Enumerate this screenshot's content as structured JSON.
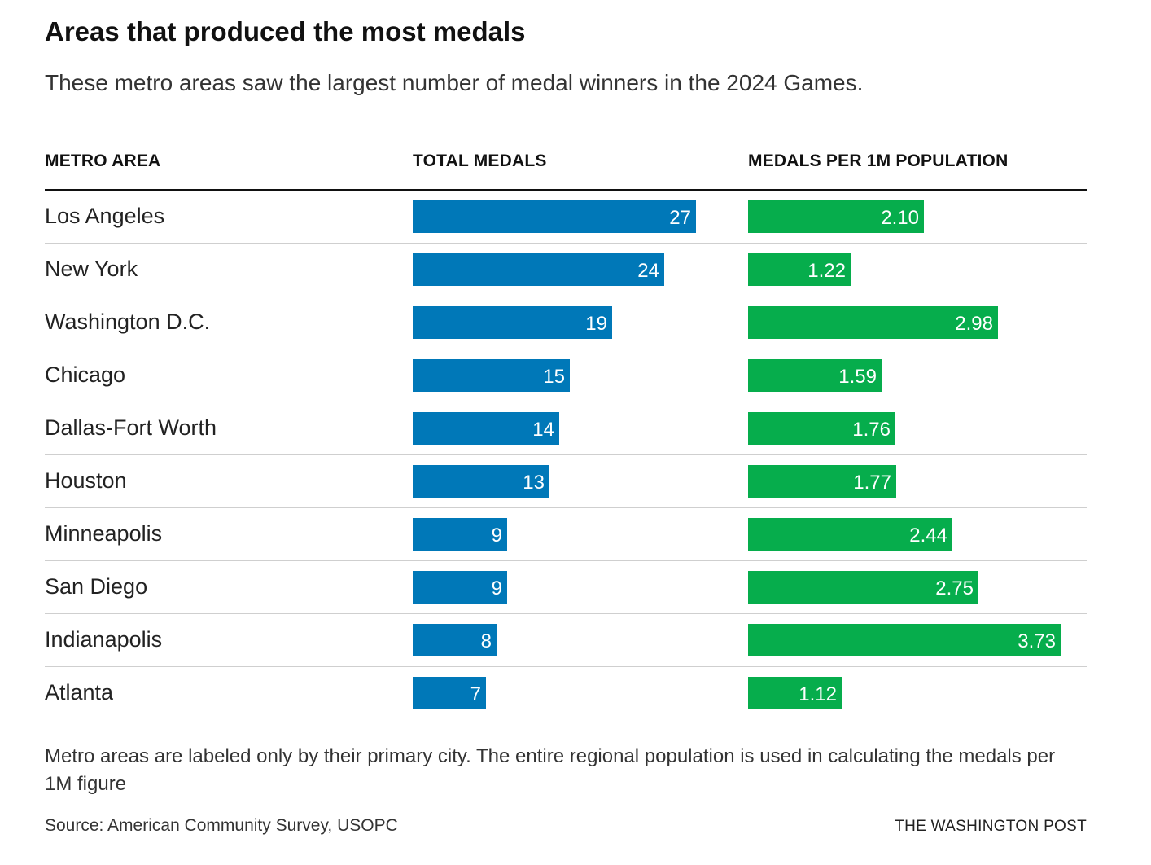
{
  "title": "Areas that produced the most medals",
  "subtitle": "These metro areas saw the largest number of medal winners in the 2024 Games.",
  "headers": {
    "metro": "METRO AREA",
    "total": "TOTAL MEDALS",
    "per": "MEDALS PER 1M POPULATION"
  },
  "footnote": "Metro areas are labeled only by their primary city. The entire regional population is used in calculating the medals per 1M figure",
  "source": "Source: American Community Survey, USOPC",
  "credit": "THE WASHINGTON POST",
  "colors": {
    "total": "#0078b8",
    "per": "#06ad4c"
  },
  "chart_data": {
    "type": "bar",
    "categories": [
      "Los Angeles",
      "New York",
      "Washington D.C.",
      "Chicago",
      "Dallas-Fort Worth",
      "Houston",
      "Minneapolis",
      "San Diego",
      "Indianapolis",
      "Atlanta"
    ],
    "series": [
      {
        "name": "TOTAL MEDALS",
        "values": [
          27,
          24,
          19,
          15,
          14,
          13,
          9,
          9,
          8,
          7
        ],
        "labels": [
          "27",
          "24",
          "19",
          "15",
          "14",
          "13",
          "9",
          "9",
          "8",
          "7"
        ]
      },
      {
        "name": "MEDALS PER 1M POPULATION",
        "values": [
          2.1,
          1.22,
          2.98,
          1.59,
          1.76,
          1.77,
          2.44,
          2.75,
          3.73,
          1.12
        ],
        "labels": [
          "2.10",
          "1.22",
          "2.98",
          "1.59",
          "1.76",
          "1.77",
          "2.44",
          "2.75",
          "3.73",
          "1.12"
        ]
      }
    ],
    "xlim_total": [
      0,
      27
    ],
    "xlim_per": [
      0,
      3.73
    ],
    "grid": false
  }
}
